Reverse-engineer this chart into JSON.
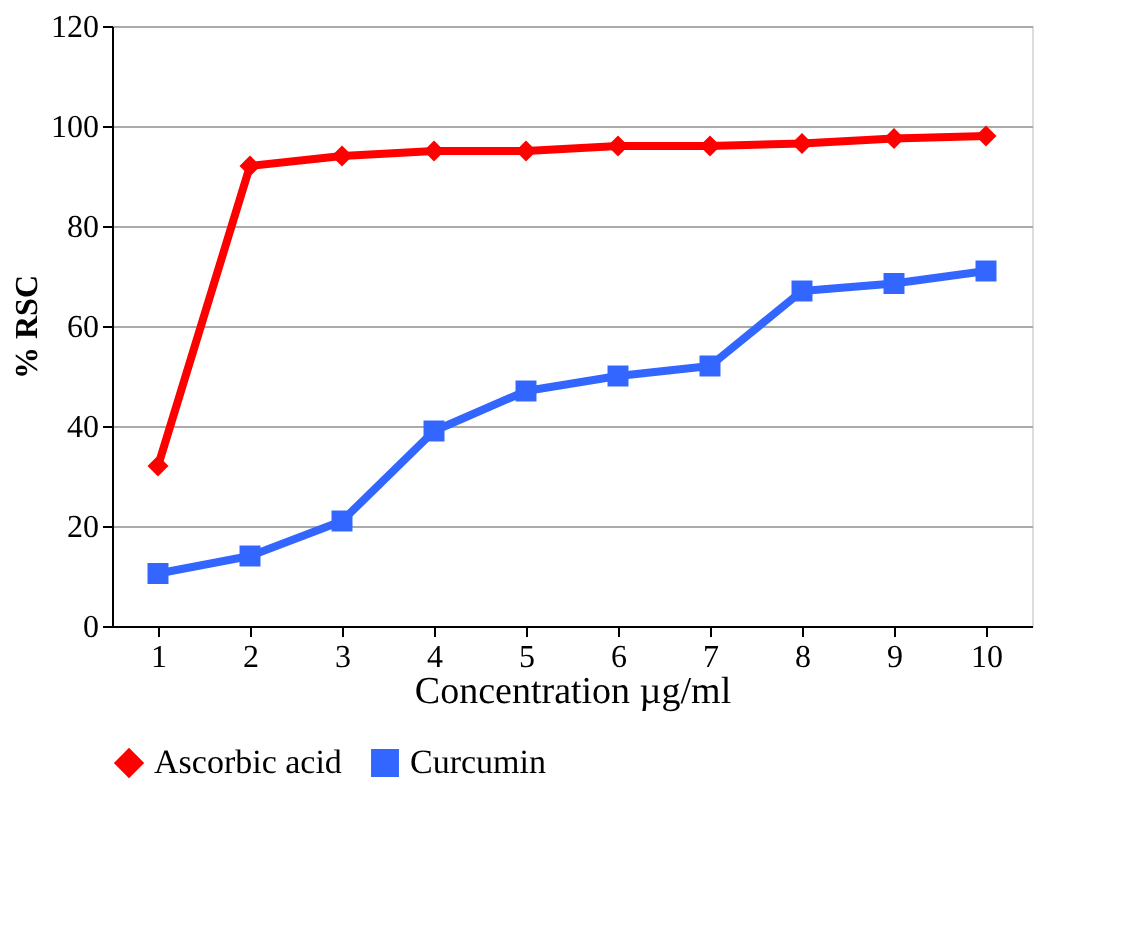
{
  "chart_data": {
    "type": "line",
    "xlabel": "Concentration µg/ml",
    "ylabel": "% RSC",
    "categories": [
      "1",
      "2",
      "3",
      "4",
      "5",
      "6",
      "7",
      "8",
      "9",
      "10"
    ],
    "series": [
      {
        "name": "Ascorbic acid",
        "color": "#ff0000",
        "marker": "diamond",
        "values": [
          32,
          92,
          94,
          95,
          95,
          96,
          96,
          96.5,
          97.5,
          98
        ]
      },
      {
        "name": "Curcumin",
        "color": "#3366ff",
        "marker": "square",
        "values": [
          10.5,
          14,
          21,
          39,
          47,
          50,
          52,
          67,
          68.5,
          71
        ]
      }
    ],
    "ylim": [
      0,
      120
    ],
    "yticks": [
      0,
      20,
      40,
      60,
      80,
      100,
      120
    ],
    "grid": "y",
    "legend": "bottom",
    "line_style": "solid"
  }
}
